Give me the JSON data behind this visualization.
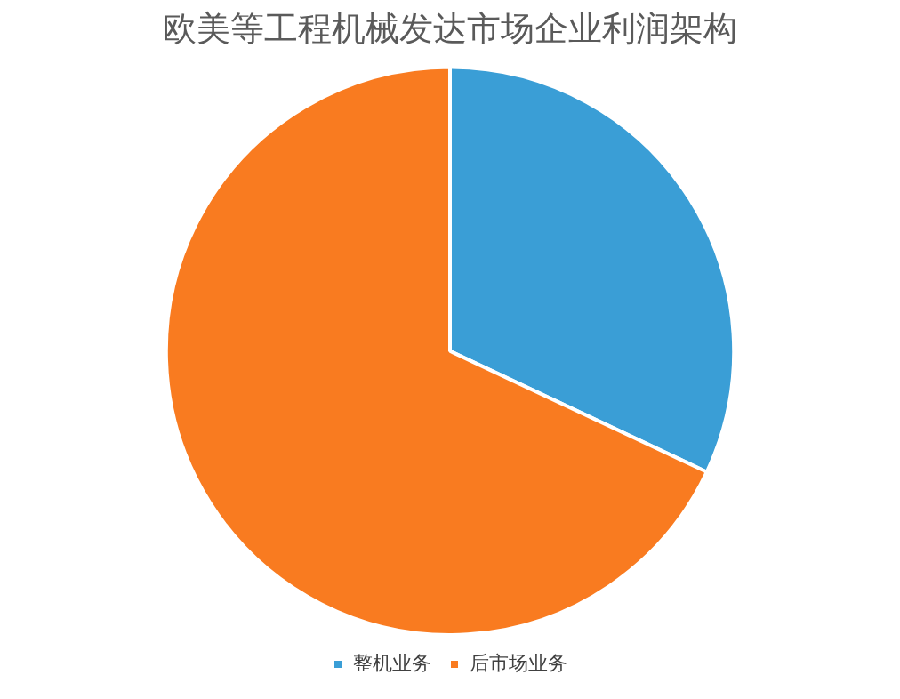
{
  "chart_data": {
    "type": "pie",
    "title": "欧美等工程机械发达市场企业利润架构",
    "categories": [
      "整机业务",
      "后市场业务"
    ],
    "values": [
      32,
      68
    ],
    "colors": [
      "#3a9ed6",
      "#f97b20"
    ],
    "legend": "bottom"
  }
}
